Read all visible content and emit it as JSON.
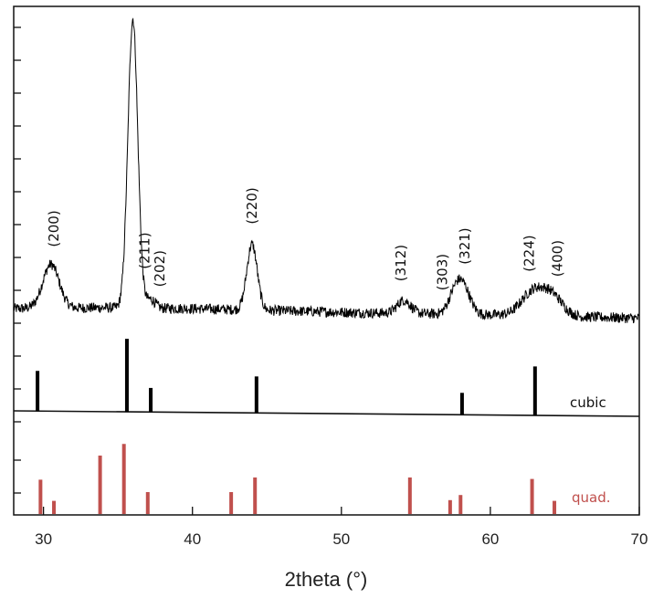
{
  "chart_data": {
    "type": "line",
    "xlabel": "2theta (°)",
    "xlim": [
      28,
      70
    ],
    "x_ticks": [
      30,
      40,
      50,
      60,
      70
    ],
    "colors": {
      "pattern": "#000000",
      "cubic": "#000000",
      "quad": "#c0504d"
    },
    "grid": false,
    "pattern": {
      "background": [
        [
          28,
          0.5
        ],
        [
          34,
          0.52
        ],
        [
          40,
          0.5
        ],
        [
          46,
          0.45
        ],
        [
          52,
          0.4
        ],
        [
          58,
          0.37
        ],
        [
          64,
          0.33
        ],
        [
          70,
          0.28
        ]
      ],
      "peaks": [
        {
          "hkl": "(200)",
          "x": 30.5,
          "height": 1.0,
          "width": 0.55
        },
        {
          "hkl": "(211)",
          "x": 36.0,
          "height": 6.6,
          "width": 0.33
        },
        {
          "hkl": "(202)",
          "x": 37.2,
          "height": 0.2,
          "width": 0.3
        },
        {
          "hkl": "(220)",
          "x": 44.0,
          "height": 1.5,
          "width": 0.35
        },
        {
          "hkl": "(312)",
          "x": 54.2,
          "height": 0.3,
          "width": 0.45
        },
        {
          "hkl": "(303)",
          "x": 57.5,
          "height": 0.25,
          "width": 0.4
        },
        {
          "hkl": "(321)",
          "x": 58.1,
          "height": 0.7,
          "width": 0.5
        },
        {
          "hkl": "(224)",
          "x": 62.9,
          "height": 0.55,
          "width": 0.8
        },
        {
          "hkl": "(400)",
          "x": 64.2,
          "height": 0.4,
          "width": 0.7
        }
      ]
    },
    "peak_labels": [
      {
        "text": "(200)",
        "x": 30.7
      },
      {
        "text": "(211)",
        "x": 36.8
      },
      {
        "text": "(202)",
        "x": 37.8
      },
      {
        "text": "(220)",
        "x": 44.0
      },
      {
        "text": "(312)",
        "x": 54.0
      },
      {
        "text": "(303)",
        "x": 56.8
      },
      {
        "text": "(321)",
        "x": 58.3
      },
      {
        "text": "(224)",
        "x": 62.6
      },
      {
        "text": "(400)",
        "x": 64.5
      }
    ],
    "cubic": {
      "label": "cubic",
      "lines": [
        [
          29.6,
          0.55
        ],
        [
          35.6,
          1.0
        ],
        [
          37.2,
          0.33
        ],
        [
          44.3,
          0.5
        ],
        [
          58.1,
          0.3
        ],
        [
          63.0,
          0.67
        ]
      ]
    },
    "quad": {
      "label": "quad.",
      "lines": [
        [
          29.8,
          0.47
        ],
        [
          30.7,
          0.18
        ],
        [
          33.8,
          0.8
        ],
        [
          35.4,
          0.96
        ],
        [
          37.0,
          0.3
        ],
        [
          42.6,
          0.3
        ],
        [
          44.2,
          0.5
        ],
        [
          54.6,
          0.5
        ],
        [
          57.3,
          0.19
        ],
        [
          58.0,
          0.26
        ],
        [
          62.8,
          0.48
        ],
        [
          64.3,
          0.18
        ]
      ]
    }
  }
}
